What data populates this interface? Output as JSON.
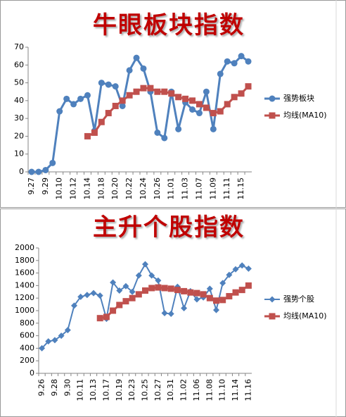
{
  "chart_data": [
    {
      "type": "line",
      "title": "牛眼板块指数",
      "categories": [
        "9.27",
        null,
        "9.29",
        null,
        "10.10",
        null,
        "10.12",
        null,
        "10.14",
        null,
        "10.18",
        null,
        "10.20",
        null,
        "10.22",
        null,
        "10.24",
        null,
        "10.26",
        null,
        "11.01",
        null,
        "11.03",
        null,
        "11.07",
        null,
        "11.09",
        null,
        "11.11",
        null,
        "11.15",
        null
      ],
      "series": [
        {
          "name": "强势板块",
          "color": "#4f81bd",
          "marker": "circle",
          "values": [
            0,
            0,
            1,
            5,
            34,
            41,
            38,
            41,
            43,
            23,
            50,
            49,
            48,
            37,
            57,
            64,
            58,
            45,
            22,
            19,
            45,
            24,
            39,
            35,
            33,
            45,
            24,
            55,
            62,
            61,
            65,
            62
          ]
        },
        {
          "name": "均线(MA10)",
          "color": "#c0504d",
          "marker": "square",
          "values": [
            null,
            null,
            null,
            null,
            null,
            null,
            null,
            null,
            20,
            22,
            28,
            33,
            37,
            40,
            43,
            45,
            47,
            47,
            45,
            45,
            44,
            42,
            41,
            40,
            38,
            36,
            33,
            34,
            38,
            42,
            44,
            48
          ]
        }
      ],
      "ylim": [
        0,
        70
      ],
      "yticks": [
        0,
        10,
        20,
        30,
        40,
        50,
        60,
        70
      ],
      "grid": false,
      "legend": "right"
    },
    {
      "type": "line",
      "title": "主升个股指数",
      "categories": [
        "9.26",
        null,
        "9.28",
        null,
        "9.30",
        null,
        "10.11",
        null,
        "10.13",
        null,
        "10.17",
        null,
        "10.19",
        null,
        "10.23",
        null,
        "10.25",
        null,
        "10.27",
        null,
        "10.31",
        null,
        "11.02",
        null,
        "11.06",
        null,
        "11.08",
        null,
        "11.10",
        null,
        "11.14",
        null,
        "11.16"
      ],
      "series": [
        {
          "name": "强势个股",
          "color": "#4f81bd",
          "marker": "diamond",
          "values": [
            400,
            510,
            530,
            600,
            690,
            1080,
            1220,
            1250,
            1280,
            1240,
            870,
            1450,
            1320,
            1390,
            1300,
            1560,
            1740,
            1560,
            1480,
            960,
            950,
            1380,
            1040,
            1310,
            1180,
            1210,
            1350,
            1010,
            1440,
            1570,
            1660,
            1720,
            1670
          ]
        },
        {
          "name": "均线(MA10)",
          "color": "#c0504d",
          "marker": "square",
          "values": [
            null,
            null,
            null,
            null,
            null,
            null,
            null,
            null,
            null,
            880,
            900,
            1000,
            1090,
            1150,
            1200,
            1260,
            1320,
            1360,
            1370,
            1360,
            1350,
            1330,
            1310,
            1290,
            1280,
            1260,
            1200,
            1160,
            1170,
            1230,
            1290,
            1330,
            1400
          ]
        }
      ],
      "ylim": [
        0,
        2000
      ],
      "yticks": [
        0,
        200,
        400,
        600,
        800,
        1000,
        1200,
        1400,
        1600,
        1800,
        2000
      ],
      "grid": false,
      "legend": "right"
    }
  ]
}
